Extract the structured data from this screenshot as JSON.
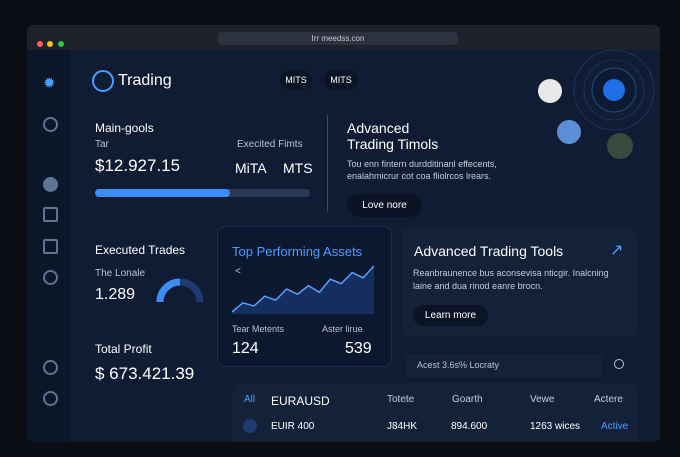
{
  "browser": {
    "url": "Irr meedss.con"
  },
  "header": {
    "logo": "Trading",
    "tabs": [
      "MITS",
      "MITS"
    ]
  },
  "main_card": {
    "title": "Main-gools",
    "label": "Tar",
    "value": "$12.927.15",
    "side_label": "Execited Fimts",
    "side_values": [
      "MiTA",
      "MTS"
    ],
    "progress": 63
  },
  "promo": {
    "title": "Advanced Trading Timols",
    "text": "Tou enn fintern durdditinanl effecents, enalahmicrur cot coa fliolrcos lrears.",
    "button": "Love nore"
  },
  "executed": {
    "title": "Executed Trades",
    "label": "The Lonale",
    "value": "1.289"
  },
  "top_assets": {
    "title": "Top Performing Assets",
    "back": "<",
    "sparkline": [
      20,
      34,
      29,
      44,
      38,
      55,
      47,
      60,
      50,
      70,
      63,
      80,
      72,
      90
    ],
    "labels": [
      "Tear Metents",
      "Aster lirue"
    ],
    "values": [
      "124",
      "539"
    ]
  },
  "tools": {
    "title": "Advanced Trading Tools",
    "text": "Reanbraunence bus aconsevisa nticgir. Inalcning laine and dua rinod eanre brocn.",
    "button": "Learn more"
  },
  "profit": {
    "title": "Total Profit",
    "value": "$ 673.421.39"
  },
  "search": {
    "placeholder": "Acest 3.6s% Locraty"
  },
  "table": {
    "header": [
      "All",
      "EURAUSD",
      "Totete",
      "Goarth",
      "Vewe",
      "Actere"
    ],
    "rows": [
      [
        "EUIR 400",
        "J84HK",
        "894.600",
        "1263 wices",
        "Active"
      ]
    ]
  }
}
